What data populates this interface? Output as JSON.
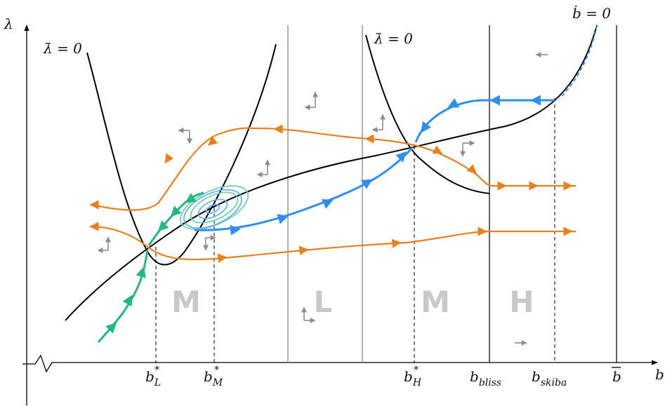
{
  "axes": {
    "y_label": "λ",
    "x_label": "b"
  },
  "curves": {
    "lambda_dot_left": "λ̇ = 0",
    "lambda_dot_right": "λ̇ = 0",
    "b_dot": "ḃ = 0"
  },
  "regions": [
    "M",
    "L",
    "M",
    "H"
  ],
  "ticks": {
    "bL": {
      "base": "b",
      "sub": "L",
      "sup": "*"
    },
    "bM": {
      "base": "b",
      "sub": "M",
      "sup": "*"
    },
    "bH": {
      "base": "b",
      "sub": "H",
      "sup": "*"
    },
    "bliss": {
      "base": "b",
      "sub": "bliss"
    },
    "skiba": {
      "base": "b",
      "sub": "skiba"
    },
    "bbar": "b"
  },
  "colors": {
    "orange": "#e8801f",
    "blue": "#2f8ef0",
    "green": "#24b87d",
    "spiral_green": "#6fd4b2",
    "spiral_blue": "#6db0e8",
    "flow_arrow": "#8d8d8d",
    "region_label": "#c8c8c8"
  }
}
